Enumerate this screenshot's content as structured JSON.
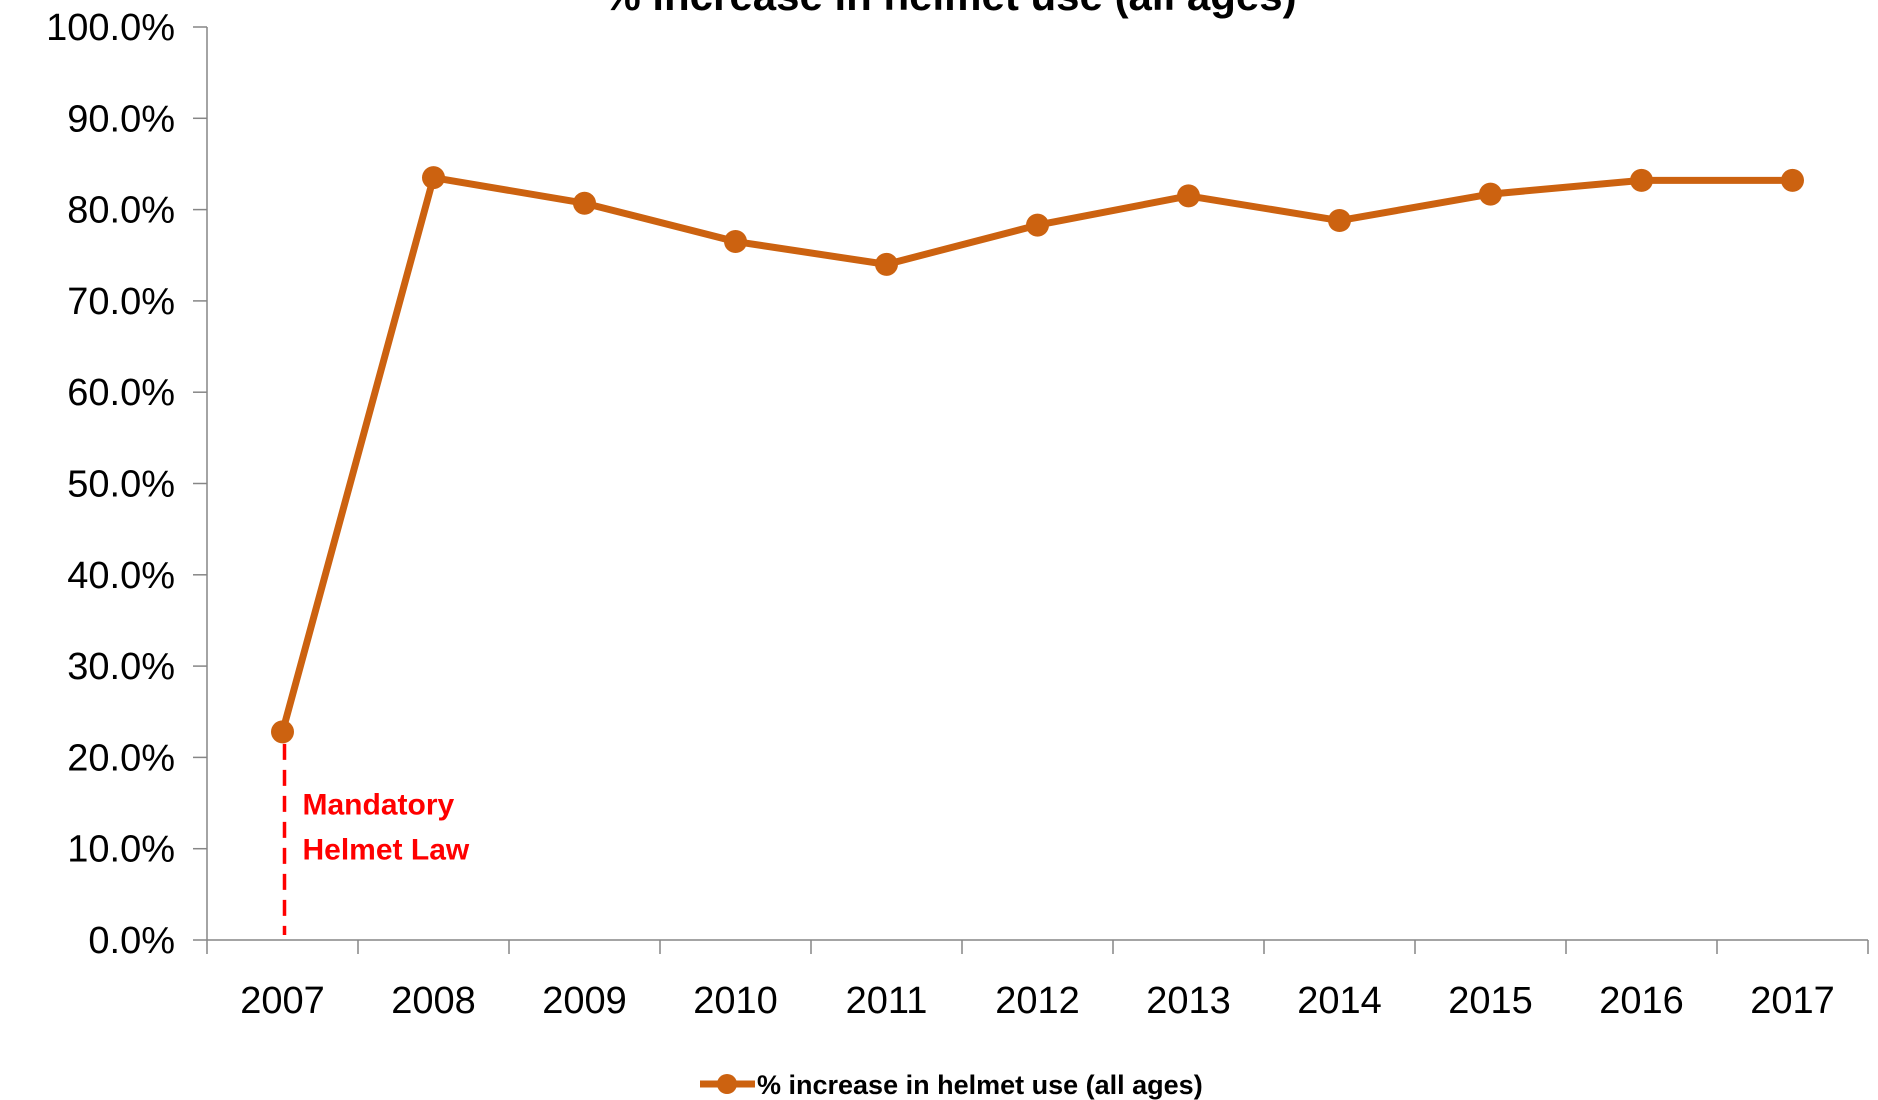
{
  "chart_data": {
    "type": "line",
    "title": "% increase in helmet use (all ages)",
    "categories": [
      "2007",
      "2008",
      "2009",
      "2010",
      "2011",
      "2012",
      "2013",
      "2014",
      "2015",
      "2016",
      "2017"
    ],
    "series": [
      {
        "name": "% increase in helmet use (all ages)",
        "values": [
          22.8,
          83.5,
          80.7,
          76.5,
          74.0,
          78.3,
          81.5,
          78.8,
          81.7,
          83.2,
          83.2
        ],
        "color": "#CC6210"
      }
    ],
    "ylim": [
      0,
      100
    ],
    "y_ticks": [
      "0.0%",
      "10.0%",
      "20.0%",
      "30.0%",
      "40.0%",
      "50.0%",
      "60.0%",
      "70.0%",
      "80.0%",
      "90.0%",
      "100.0%"
    ],
    "y_tick_values": [
      0,
      10,
      20,
      30,
      40,
      50,
      60,
      70,
      80,
      90,
      100
    ],
    "xlabel": "",
    "ylabel": "",
    "grid": false,
    "legend_position": "bottom",
    "annotation": {
      "category": "2007",
      "lines": [
        "Mandatory",
        "Helmet Law"
      ],
      "color": "#FF0000"
    }
  }
}
